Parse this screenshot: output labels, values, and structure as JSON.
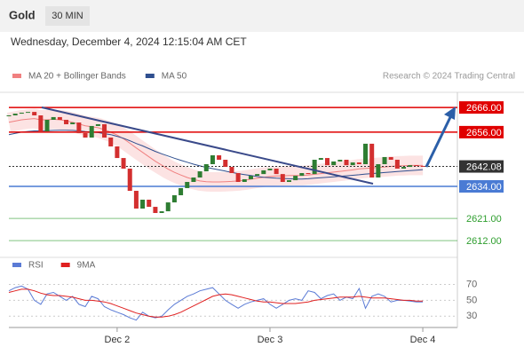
{
  "header": {
    "title": "Gold",
    "timeframe": "30 MIN",
    "datetime": "Wednesday, December 4, 2024 12:15:04 AM CET",
    "credit": "Research © 2024 Trading Central"
  },
  "chart_data": [
    {
      "type": "candles",
      "up_color": "#2e7d32",
      "down_color": "#d32f2f",
      "categories": [
        null,
        null,
        null,
        null,
        null,
        null,
        null,
        null,
        null,
        null,
        null,
        null,
        null,
        null,
        null,
        null,
        null,
        "Dec 2",
        null,
        null,
        null,
        null,
        null,
        null,
        null,
        null,
        null,
        null,
        null,
        null,
        null,
        null,
        null,
        null,
        null,
        null,
        null,
        null,
        null,
        null,
        null,
        "Dec 3",
        null,
        null,
        null,
        null,
        null,
        null,
        null,
        null,
        null,
        null,
        null,
        null,
        null,
        null,
        null,
        null,
        null,
        null,
        null,
        null,
        null,
        null,
        null,
        "Dec 4"
      ],
      "values": [
        2662.8,
        2663.5,
        2663.9,
        2664.2,
        2662.8,
        2656.3,
        2661.0,
        2662.1,
        2661.0,
        2659.2,
        2659.9,
        2655.6,
        2653.8,
        2658.5,
        2659.2,
        2653.8,
        2650.2,
        2645.5,
        2641.2,
        2632.2,
        2625.0,
        2628.6,
        2625.7,
        2623.2,
        2623.9,
        2627.5,
        2630.4,
        2633.3,
        2635.8,
        2637.6,
        2640.1,
        2643.0,
        2646.6,
        2644.8,
        2641.9,
        2639.4,
        2635.8,
        2636.9,
        2638.3,
        2639.0,
        2640.5,
        2641.2,
        2639.0,
        2635.8,
        2636.5,
        2638.3,
        2639.4,
        2639.0,
        2644.8,
        2645.5,
        2642.6,
        2644.1,
        2644.8,
        2642.6,
        2643.7,
        2643.0,
        2651.3,
        2637.6,
        2643.0,
        2645.9,
        2644.8,
        2641.2,
        2641.9,
        2642.6,
        2642.3,
        2642.08
      ],
      "series": [
        {
          "name": "MA 20 + Bollinger Bands",
          "color": "#f08080",
          "values": [
            2660,
            2660.5,
            2661,
            2661.3,
            2661.5,
            2661,
            2661,
            2661.2,
            2661,
            2660.6,
            2660,
            2659.3,
            2658.6,
            2658.2,
            2657.8,
            2657,
            2656,
            2654.8,
            2653.3,
            2651.5,
            2649.6,
            2647.8,
            2646,
            2644.2,
            2642.6,
            2641,
            2639.7,
            2638.6,
            2637.6,
            2636.8,
            2636.2,
            2635.9,
            2635.8,
            2635.8,
            2635.9,
            2636,
            2636.2,
            2636.5,
            2636.9,
            2637.3,
            2637.7,
            2638,
            2638.2,
            2638.3,
            2638.4,
            2638.4,
            2638.4,
            2638.6,
            2638.9,
            2639.2,
            2639.5,
            2639.8,
            2640.1,
            2640.4,
            2640.7,
            2641.1,
            2641.3,
            2641.5,
            2641.7,
            2641.9,
            2642.1,
            2642.3,
            2642.4,
            2642.5,
            2642.5,
            2642.5
          ]
        },
        {
          "name": "MA 50",
          "color": "#2f4f8f",
          "values": [
            2655,
            2655.5,
            2656,
            2656.3,
            2656.5,
            2656.5,
            2656.6,
            2656.7,
            2656.8,
            2656.8,
            2656.7,
            2656.5,
            2656.2,
            2656,
            2655.8,
            2655.4,
            2655,
            2654.3,
            2653.5,
            2652.5,
            2651.4,
            2650.4,
            2649.3,
            2648.2,
            2647.2,
            2646.3,
            2645.4,
            2644.6,
            2643.8,
            2643,
            2642.3,
            2641.7,
            2641.2,
            2640.7,
            2640.2,
            2639.7,
            2639.2,
            2638.8,
            2638.4,
            2638,
            2637.7,
            2637.5,
            2637.3,
            2637.2,
            2637.1,
            2637,
            2637,
            2637.1,
            2637.3,
            2637.5,
            2637.7,
            2637.9,
            2638.1,
            2638.3,
            2638.5,
            2638.7,
            2639,
            2639.2,
            2639.4,
            2639.6,
            2639.8,
            2640,
            2640.2,
            2640.4,
            2640.6,
            2640.8
          ]
        }
      ],
      "ylim": [
        2607,
        2670
      ],
      "levels": [
        {
          "value": 2666,
          "label": "2666.00"
        },
        {
          "value": 2656,
          "label": "2656.00"
        },
        {
          "value": 2634,
          "label": "2634.00"
        },
        {
          "value": 2621,
          "label": "2621.00"
        },
        {
          "value": 2612,
          "label": "2612.00"
        }
      ],
      "level_colors": [
        "#e00000",
        "#e00000",
        "#4a7bd4",
        "#2e9e2e",
        "#2e9e2e"
      ],
      "last": 2642.08
    },
    {
      "type": "line",
      "series": [
        {
          "name": "RSI",
          "color": "#5b7bd5",
          "values": [
            62,
            66,
            68,
            64,
            50,
            45,
            58,
            60,
            55,
            50,
            55,
            45,
            42,
            55,
            52,
            42,
            38,
            35,
            32,
            28,
            25,
            35,
            30,
            28,
            30,
            38,
            45,
            50,
            55,
            58,
            62,
            64,
            66,
            58,
            50,
            45,
            40,
            45,
            48,
            50,
            52,
            45,
            40,
            45,
            50,
            52,
            50,
            62,
            60,
            52,
            56,
            58,
            50,
            54,
            52,
            65,
            40,
            55,
            58,
            55,
            48,
            50,
            50,
            49,
            48,
            48
          ]
        },
        {
          "name": "9MA",
          "color": "#e02020",
          "values": [
            60,
            62,
            64,
            64,
            62,
            59,
            57,
            56,
            56,
            55,
            54,
            52,
            50,
            50,
            49,
            48,
            46,
            43,
            40,
            37,
            34,
            32,
            30,
            29,
            29,
            30,
            32,
            35,
            39,
            43,
            47,
            51,
            55,
            57,
            58,
            57,
            55,
            53,
            51,
            49,
            48,
            48,
            47,
            46,
            46,
            46,
            47,
            48,
            50,
            51,
            52,
            53,
            54,
            54,
            54,
            55,
            54,
            53,
            53,
            53,
            52,
            51,
            50,
            50,
            49,
            49
          ]
        }
      ],
      "ylim": [
        18,
        84
      ],
      "yticks": [
        30,
        50,
        70
      ]
    }
  ]
}
